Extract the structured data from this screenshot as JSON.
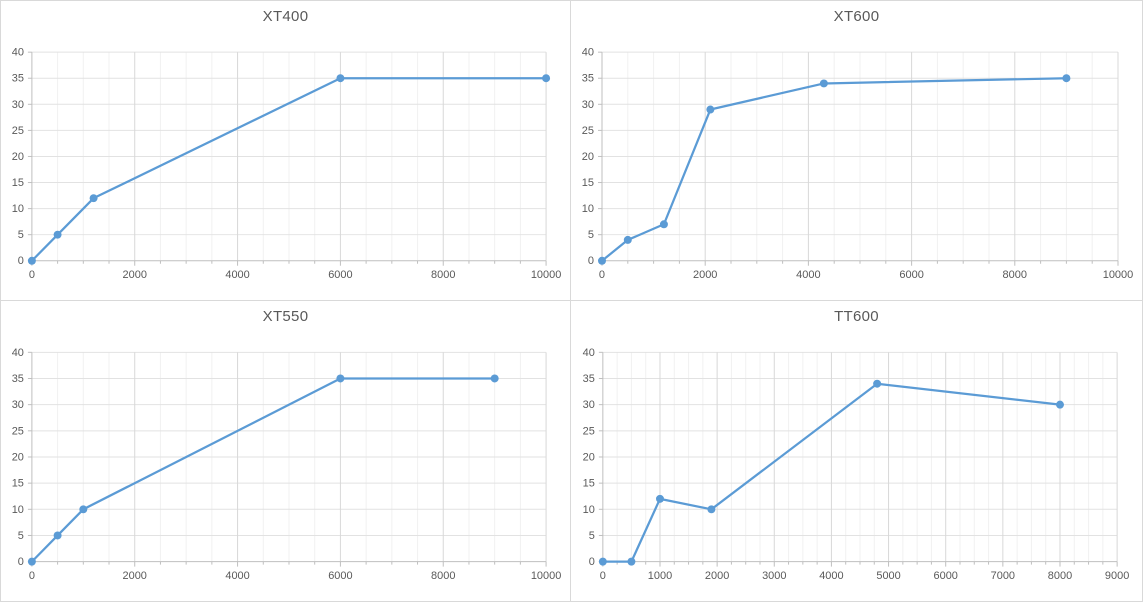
{
  "colors": {
    "series": "#5b9bd5",
    "grid_minor": "#f1f1f1",
    "grid_major_v": "#d8d8d8",
    "grid_h": "#e2e2e2",
    "axis": "#bfbfbf",
    "tick_label": "#595959",
    "title": "#595959",
    "panel_border": "#d9d9d9",
    "background": "#ffffff"
  },
  "chart_data": [
    {
      "type": "line",
      "title": "XT400",
      "x": [
        0,
        500,
        1200,
        6000,
        10000
      ],
      "y": [
        0,
        5,
        12,
        35,
        35
      ],
      "xlim": [
        0,
        10000
      ],
      "ylim": [
        0,
        40
      ],
      "x_major": 2000,
      "x_minor": 500,
      "y_major": 5,
      "xtick_labels": [
        "0",
        "2000",
        "4000",
        "6000",
        "8000",
        "10000"
      ],
      "ytick_labels": [
        "0",
        "5",
        "10",
        "15",
        "20",
        "25",
        "30",
        "35",
        "40"
      ],
      "grid": true,
      "legend": "none",
      "marker": "circle"
    },
    {
      "type": "line",
      "title": "XT600",
      "x": [
        0,
        500,
        1200,
        2100,
        4300,
        9000
      ],
      "y": [
        0,
        4,
        7,
        29,
        34,
        35
      ],
      "xlim": [
        0,
        10000
      ],
      "ylim": [
        0,
        40
      ],
      "x_major": 2000,
      "x_minor": 500,
      "y_major": 5,
      "xtick_labels": [
        "0",
        "2000",
        "4000",
        "6000",
        "8000",
        "10000"
      ],
      "ytick_labels": [
        "0",
        "5",
        "10",
        "15",
        "20",
        "25",
        "30",
        "35",
        "40"
      ],
      "grid": true,
      "legend": "none",
      "marker": "circle"
    },
    {
      "type": "line",
      "title": "XT550",
      "x": [
        0,
        500,
        1000,
        6000,
        9000
      ],
      "y": [
        0,
        5,
        10,
        35,
        35
      ],
      "xlim": [
        0,
        10000
      ],
      "ylim": [
        0,
        40
      ],
      "x_major": 2000,
      "x_minor": 500,
      "y_major": 5,
      "xtick_labels": [
        "0",
        "2000",
        "4000",
        "6000",
        "8000",
        "10000"
      ],
      "ytick_labels": [
        "0",
        "5",
        "10",
        "15",
        "20",
        "25",
        "30",
        "35",
        "40"
      ],
      "grid": true,
      "legend": "none",
      "marker": "circle"
    },
    {
      "type": "line",
      "title": "TT600",
      "x": [
        0,
        500,
        1000,
        1900,
        4800,
        8000
      ],
      "y": [
        0,
        0,
        12,
        10,
        34,
        30
      ],
      "xlim": [
        0,
        9000
      ],
      "ylim": [
        0,
        40
      ],
      "x_major": 1000,
      "x_minor": 250,
      "y_major": 5,
      "xtick_labels": [
        "0",
        "1000",
        "2000",
        "3000",
        "4000",
        "5000",
        "6000",
        "7000",
        "8000",
        "9000"
      ],
      "ytick_labels": [
        "0",
        "5",
        "10",
        "15",
        "20",
        "25",
        "30",
        "35",
        "40"
      ],
      "grid": true,
      "legend": "none",
      "marker": "circle"
    }
  ]
}
